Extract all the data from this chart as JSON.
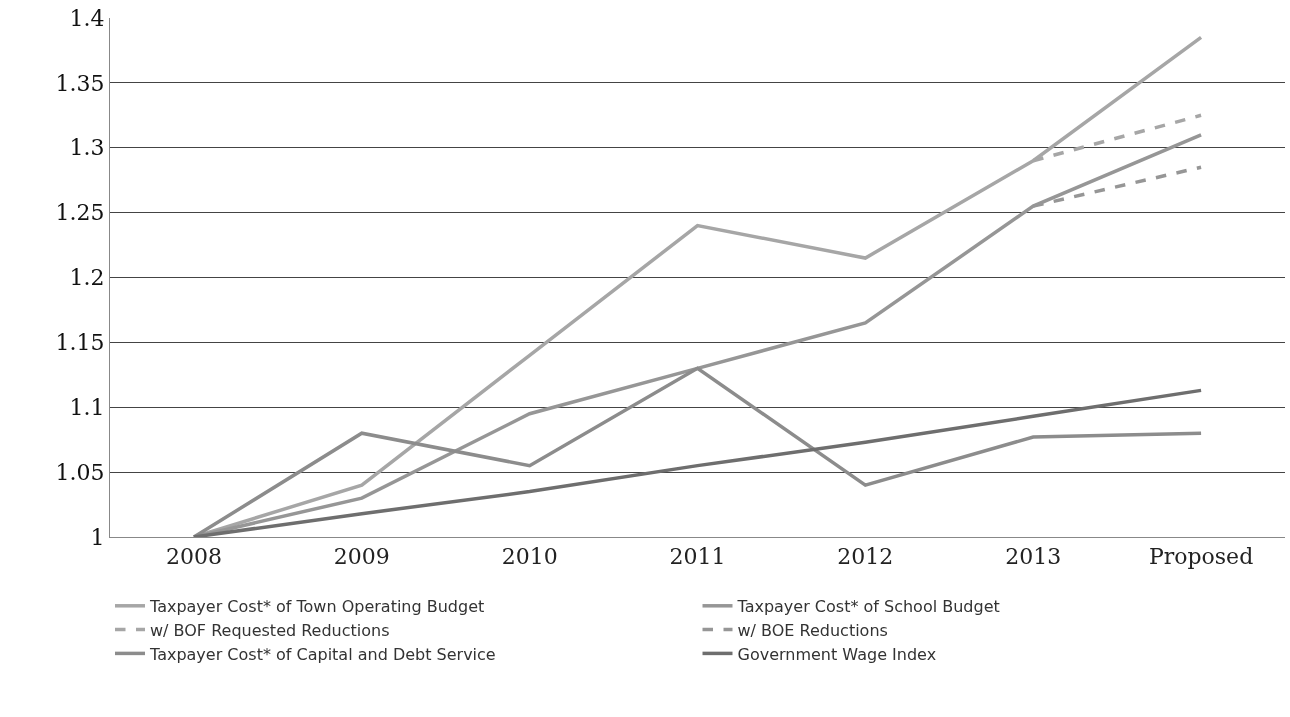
{
  "chart_data": {
    "type": "line",
    "categories": [
      "2008",
      "2009",
      "2010",
      "2011",
      "2012",
      "2013",
      "Proposed"
    ],
    "series": [
      {
        "name": "Taxpayer Cost* of Town Operating Budget",
        "color": "#a6a6a6",
        "values": [
          1,
          1.04,
          1.14,
          1.24,
          1.215,
          1.29,
          1.385
        ]
      },
      {
        "name": "Taxpayer Cost* of School Budget",
        "color": "#969696",
        "values": [
          1,
          1.03,
          1.095,
          1.13,
          1.165,
          1.255,
          1.31
        ]
      },
      {
        "name": "w/ BOF Requested Reductions",
        "color": "#a6a6a6",
        "line_style": "dashed",
        "values": [
          null,
          null,
          null,
          null,
          null,
          1.29,
          1.325
        ]
      },
      {
        "name": "w/ BOE Reductions",
        "color": "#969696",
        "line_style": "dashed",
        "values": [
          null,
          null,
          null,
          null,
          null,
          1.255,
          1.285
        ]
      },
      {
        "name": "Taxpayer Cost* of Capital and Debt Service",
        "color": "#8c8c8c",
        "values": [
          1,
          1.08,
          1.055,
          1.13,
          1.04,
          1.077,
          1.08
        ]
      },
      {
        "name": "Government Wage Index",
        "color": "#6e6e6e",
        "values": [
          1,
          1.018,
          1.035,
          1.055,
          1.073,
          1.093,
          1.113
        ]
      }
    ],
    "ylim": [
      1,
      1.4
    ],
    "yticks": [
      1,
      1.05,
      1.1,
      1.15,
      1.2,
      1.25,
      1.3,
      1.35,
      1.4
    ],
    "grid": "y",
    "legend": "bottom",
    "marker": "none",
    "line_style": "solid"
  }
}
